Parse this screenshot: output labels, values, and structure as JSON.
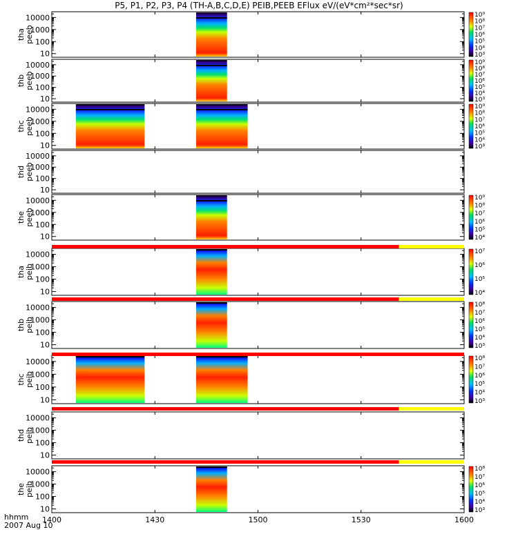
{
  "title": "P5, P1, P2, P3, P4 (TH-A,B,C,D,E) PEIB,PEEB EFlux eV/(eV*cm²*sec*sr)",
  "time_axis": {
    "label": "hhmm",
    "date": "2007 Aug 10",
    "ticks": [
      "1400",
      "1430",
      "1500",
      "1530",
      "1600"
    ],
    "tick_minutes": [
      0,
      30,
      60,
      90,
      120
    ],
    "range_minutes": [
      0,
      120
    ]
  },
  "chart_data": {
    "type": "heatmap",
    "title": "P5, P1, P2, P3, P4 (TH-A,B,C,D,E) PEIB,PEEB EFlux eV/(eV*cm²*sec*sr)",
    "y_scale": "log",
    "ylim": [
      5,
      30000
    ],
    "y_ticks": [
      "10",
      "100",
      "1000",
      "10000"
    ],
    "panels": [
      {
        "label1": "tha",
        "label2": "peeb",
        "segments": [
          [
            42,
            51
          ]
        ],
        "colorbar": {
          "ticks": [
            "10³",
            "10⁴",
            "10⁵",
            "10⁶",
            "10⁷",
            "10⁸",
            "10⁹"
          ]
        }
      },
      {
        "label1": "thb",
        "label2": "peeb",
        "segments": [
          [
            42,
            51
          ]
        ],
        "colorbar": {
          "ticks": [
            "10³",
            "10⁴",
            "10⁵",
            "10⁶",
            "10⁷",
            "10⁸",
            "10⁹"
          ]
        }
      },
      {
        "label1": "thc",
        "label2": "peeb",
        "segments": [
          [
            7,
            27
          ],
          [
            42,
            57
          ]
        ],
        "colorbar": {
          "ticks": [
            "10³",
            "10⁴",
            "10⁵",
            "10⁶",
            "10⁷",
            "10⁸",
            "10⁹"
          ]
        }
      },
      {
        "label1": "thd",
        "label2": "peeb",
        "segments": [],
        "colorbar": null
      },
      {
        "label1": "the",
        "label2": "peeb",
        "segments": [
          [
            42,
            51
          ]
        ],
        "colorbar": {
          "ticks": [
            "10⁴",
            "10⁵",
            "10⁶",
            "10⁷",
            "10⁸",
            "10⁹"
          ]
        }
      },
      {
        "label1": "tha",
        "label2": "peib",
        "segments": [
          [
            42,
            51
          ]
        ],
        "colorbar": {
          "ticks": [
            "10⁴",
            "10⁵",
            "10⁶",
            "10⁷"
          ]
        }
      },
      {
        "label1": "thb",
        "label2": "peib",
        "segments": [
          [
            42,
            51
          ]
        ],
        "colorbar": {
          "ticks": [
            "10³",
            "10⁴",
            "10⁵",
            "10⁶",
            "10⁷",
            "10⁸"
          ]
        }
      },
      {
        "label1": "thc",
        "label2": "peib",
        "segments": [
          [
            7,
            27
          ],
          [
            42,
            57
          ]
        ],
        "colorbar": {
          "ticks": [
            "10³",
            "10⁴",
            "10⁵",
            "10⁶",
            "10⁷",
            "10⁸"
          ]
        }
      },
      {
        "label1": "thd",
        "label2": "peib",
        "segments": [],
        "colorbar": null
      },
      {
        "label1": "the",
        "label2": "peib",
        "segments": [
          [
            42,
            51
          ]
        ],
        "colorbar": {
          "ticks": [
            "10³",
            "10⁴",
            "10⁵",
            "10⁶",
            "10⁷",
            "10⁸"
          ]
        }
      }
    ],
    "status_bars": [
      {
        "red_minutes": [
          0,
          101
        ],
        "yellow_minutes": [
          101,
          120
        ]
      },
      {
        "red_minutes": [
          0,
          101
        ],
        "yellow_minutes": [
          101,
          120
        ]
      },
      {
        "red_minutes": [
          0,
          120
        ],
        "yellow_minutes": null
      },
      {
        "red_minutes": [
          0,
          101
        ],
        "yellow_minutes": [
          101,
          120
        ]
      },
      {
        "red_minutes": [
          0,
          101
        ],
        "yellow_minutes": [
          101,
          120
        ]
      }
    ],
    "colors": {
      "red": "#ff0000",
      "yellow": "#ffff00"
    }
  }
}
